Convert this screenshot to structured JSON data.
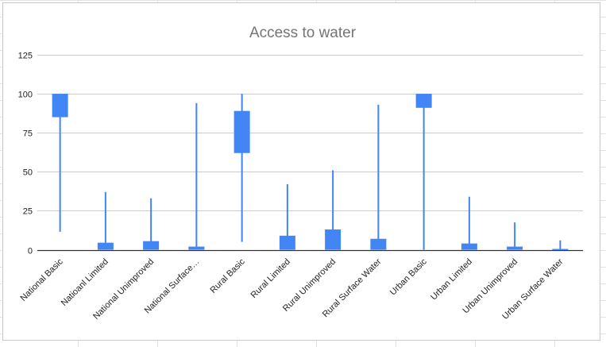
{
  "chart_data": {
    "type": "candlestick",
    "title": "Access to water",
    "xlabel": "",
    "ylabel": "",
    "ylim": [
      0,
      125
    ],
    "yticks": [
      "0",
      "25",
      "50",
      "75",
      "100",
      "125"
    ],
    "ytick_values": [
      0,
      25,
      50,
      75,
      100,
      125
    ],
    "grid": true,
    "color": "#4285f4",
    "categories": [
      "National Basic",
      "Natioanl Limited",
      "National Unimproved",
      "National Surface…",
      "Rural Basic",
      "Rural Limited",
      "Rural Unimproved",
      "Rural Surface Water",
      "Urban Basic",
      "Urban Limited",
      "Urban Unimproved",
      "Urban Surface Water"
    ],
    "series": [
      {
        "low": [
          11.5,
          0,
          0,
          0,
          5,
          0,
          0,
          0,
          0,
          0,
          0,
          0
        ],
        "open": [
          85,
          0,
          0,
          0,
          62,
          0,
          0,
          0,
          91,
          0,
          0,
          0
        ],
        "close": [
          100,
          4.5,
          5.5,
          2,
          89,
          9,
          13,
          7,
          100,
          4,
          2,
          0.5
        ],
        "high": [
          100,
          37,
          33,
          94,
          100,
          42,
          51,
          93,
          100,
          34,
          17.5,
          6
        ]
      }
    ]
  }
}
